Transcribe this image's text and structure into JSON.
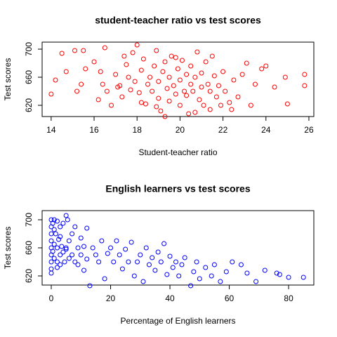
{
  "chart_data": [
    {
      "type": "scatter",
      "title": "student-teacher ratio vs test scores",
      "x_label": "Student-teacher ratio",
      "y_label": "Test scores",
      "color": "#ff0000",
      "xlim": [
        13.58,
        26.23
      ],
      "ylim": [
        604,
        710
      ],
      "xticks": [
        14,
        16,
        18,
        20,
        22,
        24,
        26
      ],
      "yticks": [
        620,
        660,
        700
      ],
      "x": [
        14.0,
        14.2,
        14.5,
        14.7,
        15.1,
        15.2,
        15.4,
        15.5,
        15.6,
        16.0,
        16.2,
        16.3,
        16.4,
        16.5,
        16.6,
        16.8,
        17.0,
        17.1,
        17.3,
        17.4,
        17.5,
        17.6,
        17.7,
        17.8,
        17.9,
        18.0,
        18.1,
        18.2,
        18.3,
        18.4,
        18.5,
        18.6,
        18.7,
        18.8,
        18.9,
        19.0,
        19.0,
        19.1,
        19.2,
        19.3,
        19.4,
        19.5,
        19.5,
        19.6,
        19.7,
        19.8,
        19.9,
        20.0,
        20.0,
        20.1,
        20.2,
        20.3,
        20.4,
        20.5,
        20.5,
        20.6,
        20.7,
        20.8,
        20.9,
        21.0,
        21.0,
        21.1,
        21.2,
        21.3,
        21.4,
        21.5,
        21.6,
        21.7,
        21.8,
        21.9,
        22.0,
        22.1,
        22.3,
        22.5,
        22.7,
        22.9,
        23.1,
        23.3,
        23.5,
        23.8,
        24.0,
        24.4,
        24.9,
        25.0,
        25.8,
        25.8,
        18.2,
        19.3,
        20.7,
        21.4,
        19.8,
        20.3,
        17.2,
        18.9,
        22.4
      ],
      "values": [
        636,
        656,
        694,
        668,
        698,
        640,
        650,
        698,
        672,
        682,
        628,
        668,
        650,
        702,
        640,
        620,
        664,
        646,
        632,
        690,
        678,
        660,
        642,
        695,
        654,
        706,
        638,
        670,
        686,
        622,
        650,
        660,
        640,
        676,
        698,
        654,
        630,
        612,
        668,
        682,
        644,
        660,
        626,
        690,
        648,
        636,
        672,
        656,
        620,
        684,
        640,
        664,
        608,
        650,
        676,
        640,
        660,
        696,
        628,
        666,
        646,
        620,
        682,
        650,
        640,
        690,
        662,
        632,
        648,
        620,
        668,
        640,
        624,
        656,
        632,
        664,
        680,
        620,
        650,
        672,
        676,
        646,
        660,
        622,
        648,
        664,
        624,
        604,
        610,
        614,
        688,
        634,
        648,
        618,
        614
      ]
    },
    {
      "type": "scatter",
      "title": "English learners vs test scores",
      "x_label": "Percentage of English learners",
      "y_label": "Test scores",
      "color": "#0000ff",
      "xlim": [
        -3.08,
        88.5
      ],
      "ylim": [
        607,
        713
      ],
      "xticks": [
        0,
        20,
        40,
        60,
        80
      ],
      "yticks": [
        620,
        660,
        700
      ],
      "x": [
        0,
        0,
        0,
        0,
        0,
        0,
        0,
        0,
        0.5,
        0.5,
        1,
        1,
        1,
        1.5,
        2,
        2,
        2,
        2.5,
        3,
        3,
        3,
        3.5,
        4,
        4,
        4.5,
        5,
        5,
        5.5,
        6,
        6,
        7,
        7,
        8,
        8,
        9,
        9,
        10,
        10,
        11,
        11,
        12,
        12,
        13,
        14,
        15,
        16,
        17,
        18,
        19,
        20,
        21,
        22,
        23,
        24,
        25,
        26,
        27,
        28,
        29,
        30,
        31,
        32,
        33,
        34,
        35,
        36,
        37,
        38,
        39,
        40,
        41,
        42,
        43,
        44,
        45,
        47,
        48,
        49,
        50,
        52,
        54,
        55,
        57,
        59,
        61,
        64,
        66,
        69,
        72,
        76,
        77,
        80,
        85,
        5,
        3,
        1,
        0,
        2
      ],
      "values": [
        700,
        690,
        680,
        670,
        660,
        650,
        640,
        630,
        695,
        655,
        700,
        665,
        645,
        680,
        698,
        660,
        640,
        672,
        690,
        650,
        636,
        662,
        695,
        654,
        640,
        706,
        660,
        700,
        645,
        670,
        680,
        650,
        690,
        640,
        660,
        636,
        674,
        650,
        662,
        628,
        688,
        644,
        606,
        660,
        650,
        640,
        670,
        616,
        652,
        660,
        640,
        670,
        650,
        630,
        658,
        640,
        668,
        620,
        640,
        650,
        612,
        660,
        636,
        646,
        628,
        654,
        640,
        666,
        622,
        648,
        632,
        640,
        620,
        636,
        646,
        606,
        626,
        640,
        616,
        632,
        620,
        636,
        612,
        626,
        640,
        636,
        624,
        612,
        628,
        624,
        622,
        618,
        618,
        658,
        676,
        686,
        624,
        632
      ]
    }
  ]
}
